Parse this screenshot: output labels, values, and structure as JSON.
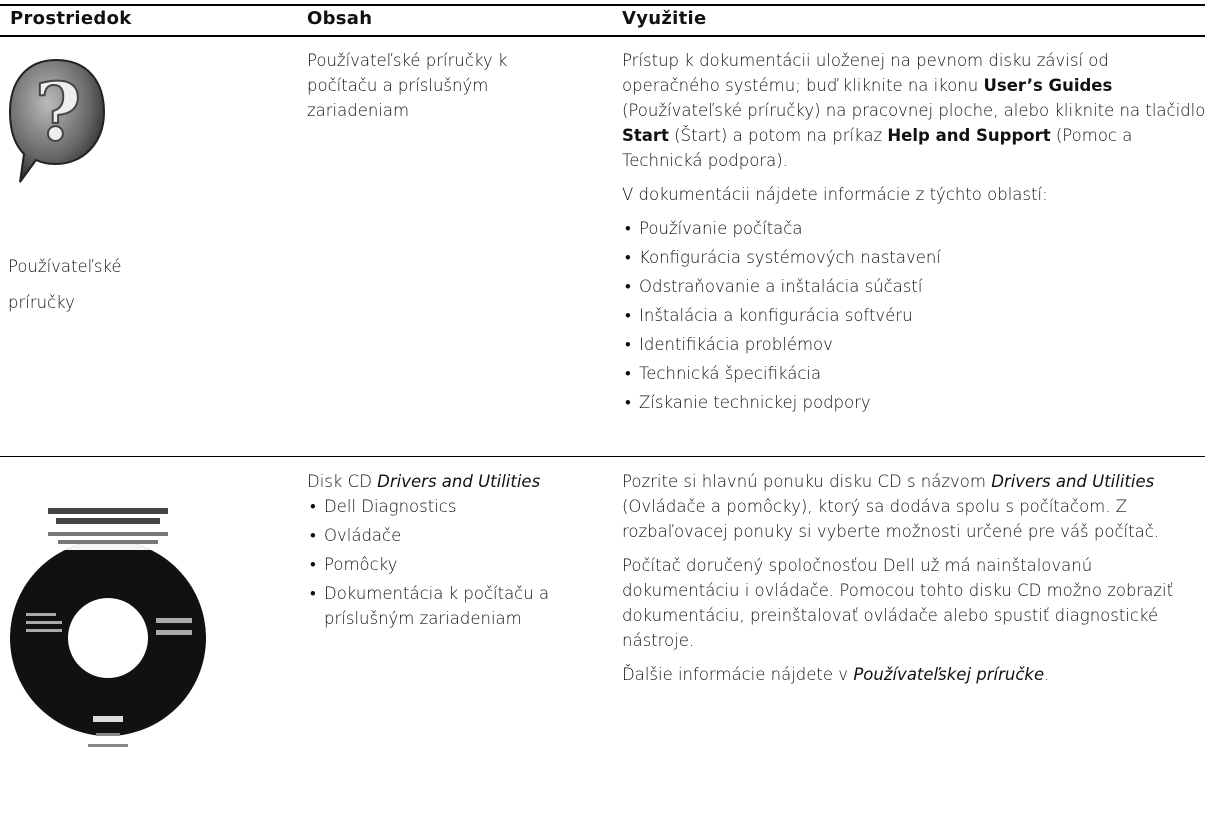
{
  "header": {
    "columns": [
      "Prostriedok",
      "Obsah",
      "Využitie"
    ]
  },
  "rows": [
    {
      "resource": "Používateľské príručky",
      "contents": {
        "runs": [
          "Používateľské príručky k počítaču a príslušným zariadeniam"
        ],
        "bullets": []
      },
      "usage": [
        {
          "runs": [
            "Prístup k dokumentácii uloženej na pevnom disku závisí od operačného systému; buď kliknite na ikonu ",
            {
              "text": "User’s Guides",
              "style": "bold"
            },
            " (Používateľské príručky) na pracovnej ploche, alebo kliknite na tlačidlo ",
            {
              "text": "Start",
              "style": "bold"
            },
            " (Štart) a potom na príkaz ",
            {
              "text": "Help and Support",
              "style": "bold"
            },
            " (Pomoc a Technická podpora)."
          ]
        },
        {
          "runs": [
            "V dokumentácii nájdete informácie z týchto oblastí:"
          ]
        }
      ],
      "usage_bullets": [
        "Používanie počítača",
        "Konfigurácia systémových nastavení",
        "Odstraňovanie a inštalácia súčastí",
        "Inštalácia a konfigurácia softvéru",
        "Identifikácia problémov",
        "Technická špecifikácia",
        "Získanie technickej podpory"
      ]
    },
    {
      "contents": {
        "runs": [
          "Disk CD ",
          {
            "text": "Drivers and Utilities",
            "style": "italic"
          }
        ],
        "bullets": [
          "Dell Diagnostics",
          "Ovládače",
          "Pomôcky",
          "Dokumentácia k počítaču a príslušným zariadeniam"
        ]
      },
      "usage": [
        {
          "runs": [
            "Pozrite si hlavnú ponuku disku CD s názvom ",
            {
              "text": "Drivers and Utilities",
              "style": "italic"
            },
            " (Ovládače a pomôcky), ktorý sa dodáva spolu s počítačom. Z rozbaľovacej ponuky si vyberte možnosti určené pre váš počítač."
          ]
        },
        {
          "runs": [
            "Počítač doručený spoločnosťou Dell už má nainštalovanú dokumentáciu i ovládače. Pomocou tohto disku CD možno zobraziť dokumentáciu, preinštalovať ovládače alebo spustiť diagnostické nástroje."
          ]
        },
        {
          "runs": [
            "Ďalšie informácie nájdete v ",
            {
              "text": "Používateľskej príručke",
              "style": "italic"
            },
            "."
          ]
        }
      ],
      "usage_bullets": []
    }
  ]
}
